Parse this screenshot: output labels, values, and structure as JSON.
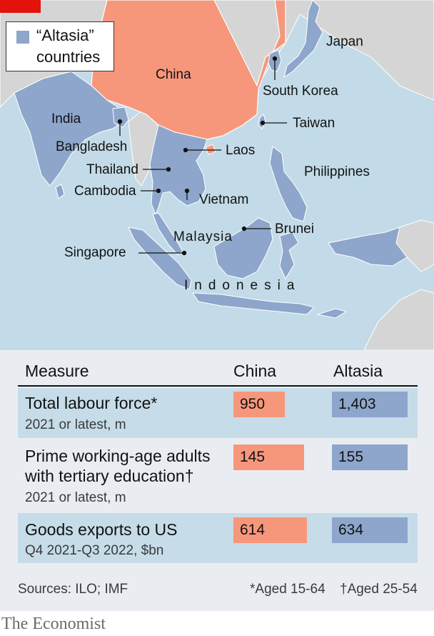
{
  "colors": {
    "china": "#f6977b",
    "altasia": "#8ea6cb",
    "other_land": "#d5d5d5",
    "sea": "#c3dbe8",
    "table_row": "#c6dce9",
    "brand_red": "#e3120b"
  },
  "legend": {
    "line1": "“Altasia”",
    "line2": "countries"
  },
  "map_labels": {
    "china": "China",
    "japan": "Japan",
    "south_korea": "South Korea",
    "taiwan": "Taiwan",
    "india": "India",
    "bangladesh": "Bangladesh",
    "laos": "Laos",
    "thailand": "Thailand",
    "cambodia": "Cambodia",
    "vietnam": "Vietnam",
    "philippines": "Philippines",
    "malaysia": "Malaysia",
    "brunei": "Brunei",
    "singapore": "Singapore",
    "indonesia": "Indonesia"
  },
  "table": {
    "headers": {
      "measure": "Measure",
      "china": "China",
      "altasia": "Altasia"
    },
    "rows": [
      {
        "title": "Total labour force*",
        "subtitle": "2021 or latest, m",
        "china": 950,
        "china_label": "950",
        "altasia": 1403,
        "altasia_label": "1,403"
      },
      {
        "title": "Prime working-age adults",
        "title2": "with tertiary education†",
        "subtitle": "2021 or latest, m",
        "china": 145,
        "china_label": "145",
        "altasia": 155,
        "altasia_label": "155"
      },
      {
        "title": "Goods exports to US",
        "subtitle": "Q4 2021-Q3 2022, $bn",
        "china": 614,
        "china_label": "614",
        "altasia": 634,
        "altasia_label": "634"
      }
    ]
  },
  "footer": {
    "sources": "Sources: ILO; IMF",
    "note1": "*Aged 15-64",
    "note2": "†Aged 25-54"
  },
  "brand": "The Economist"
}
